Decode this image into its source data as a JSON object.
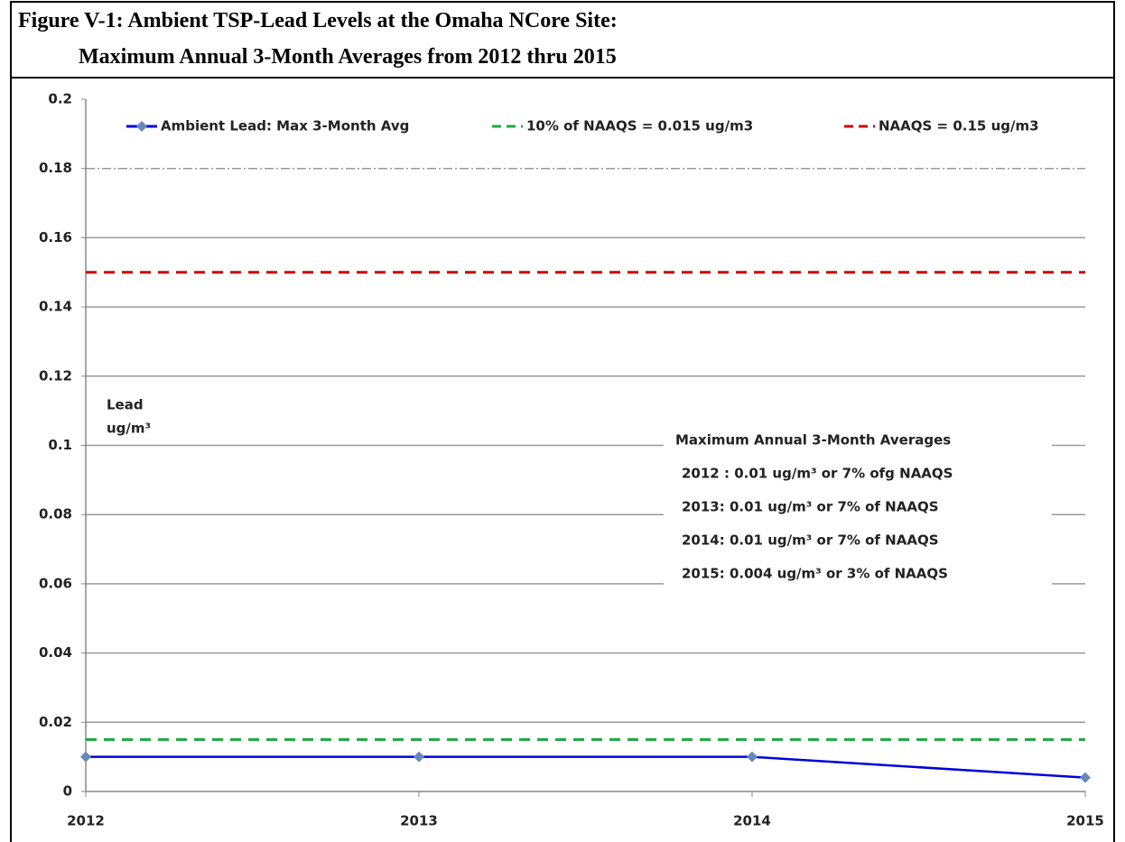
{
  "chart_data": {
    "type": "line",
    "title": "Figure V-1:  Ambient TSP-Lead Levels at the Omaha NCore Site:",
    "subtitle": "Maximum Annual 3-Month Averages from 2012 thru 2015",
    "y_label": [
      "Lead",
      "ug/m³"
    ],
    "x": [
      2012,
      2013,
      2014,
      2015
    ],
    "series": [
      {
        "name": "Ambient Lead: Max 3-Month Avg",
        "color": "#0000dd",
        "values": [
          0.01,
          0.01,
          0.01,
          0.004
        ],
        "marker": "diamond",
        "dash": "solid"
      },
      {
        "name": "10% of NAAQS =  0.015 ug/m3",
        "color": "#22aa44",
        "values": [
          0.015,
          0.015,
          0.015,
          0.015
        ],
        "dash": "dashed"
      },
      {
        "name": "NAAQS = 0.15 ug/m3",
        "color": "#cc0000",
        "values": [
          0.15,
          0.15,
          0.15,
          0.15
        ],
        "dash": "dashed"
      }
    ],
    "xlim": [
      2012,
      2015
    ],
    "xticks": [
      2012,
      2013,
      2014,
      2015
    ],
    "ylim": [
      0,
      0.2
    ],
    "yticks": [
      0,
      0.02,
      0.04,
      0.06,
      0.08,
      0.1,
      0.12,
      0.14,
      0.16,
      0.18,
      0.2
    ],
    "grid": true,
    "legend": "top",
    "annotation": [
      "Maximum Annual 3-Month Averages",
      "2012 : 0.01 ug/m³ or 7% ofg NAAQS",
      "2013: 0.01 ug/m³ or 7% of NAAQS",
      "2014: 0.01 ug/m³ or 7% of NAAQS",
      "2015: 0.004 ug/m³ or 3% of NAAQS"
    ]
  }
}
